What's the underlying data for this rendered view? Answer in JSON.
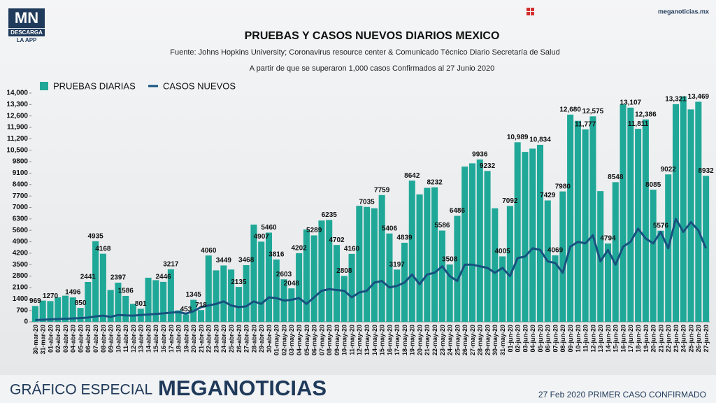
{
  "header": {
    "logo": "MN",
    "logo_sub": "DESCARGA",
    "logo_app": "LA APP",
    "site": "meganoticias.mx"
  },
  "chart_data": {
    "type": "bar_line",
    "title": "PRUEBAS Y CASOS NUEVOS DIARIOS MEXICO",
    "subtitle": "Fuente: Johns Hopkins University; Coronavirus resource center & Comunicado Técnico Diario Secretaría de Salud",
    "note": "A partir de que se superaron 1,000 casos Confirmados al 27 Junio 2020",
    "categories": [
      "30-mar-20",
      "31-mar-20",
      "01-abr-20",
      "02-abr-20",
      "03-abr-20",
      "04-abr-20",
      "05-abr-20",
      "06-abr-20",
      "07-abr-20",
      "08-abr-20",
      "09-abr-20",
      "10-abr-20",
      "11-abr-20",
      "12-abr-20",
      "13-abr-20",
      "14-abr-20",
      "15-abr-20",
      "16-abr-20",
      "17-abr-20",
      "18-abr-20",
      "19-abr-20",
      "20-abr-20",
      "21-abr-20",
      "22-abr-20",
      "23-abr-20",
      "24-abr-20",
      "25-abr-20",
      "26-abr-20",
      "27-abr-20",
      "28-abr-20",
      "29-abr-20",
      "30-abr-20",
      "01-may-20",
      "02-may-20",
      "03-may-20",
      "04-may-20",
      "05-may-20",
      "06-may-20",
      "07-may-20",
      "08-may-20",
      "09-may-20",
      "10-may-20",
      "11-may-20",
      "12-may-20",
      "13-may-20",
      "14-may-20",
      "15-may-20",
      "16-may-20",
      "17-may-20",
      "18-may-20",
      "19-may-20",
      "20-may-20",
      "21-may-20",
      "22-may-20",
      "23-may-20",
      "24-may-20",
      "25-may-20",
      "26-may-20",
      "27-may-20",
      "28-may-20",
      "29-may-20",
      "30-may-20",
      "31-may-20",
      "01-jun-20",
      "02-jun-20",
      "03-jun-20",
      "04-jun-20",
      "05-jun-20",
      "06-jun-20",
      "07-jun-20",
      "08-jun-20",
      "09-jun-20",
      "10-jun-20",
      "11-jun-20",
      "12-jun-20",
      "13-jun-20",
      "14-jun-20",
      "15-jun-20",
      "16-jun-20",
      "17-jun-20",
      "18-jun-20",
      "19-jun-20",
      "20-jun-20",
      "21-jun-20",
      "22-jun-20",
      "23-jun-20",
      "24-jun-20",
      "25-jun-20",
      "26-jun-20",
      "27-jun-20"
    ],
    "series": [
      {
        "name": "PRUEBAS DIARIAS",
        "type": "bar",
        "color": "#1fa898",
        "values": [
          969,
          1300,
          1270,
          1500,
          1600,
          1496,
          850,
          2441,
          4935,
          4168,
          1950,
          2397,
          1586,
          1100,
          801,
          2700,
          2550,
          2446,
          3217,
          700,
          453,
          1345,
          718,
          4060,
          3150,
          3449,
          3200,
          2135,
          3468,
          5950,
          4907,
          5460,
          3816,
          2603,
          2048,
          4202,
          5650,
          5289,
          6200,
          6235,
          4702,
          2808,
          4160,
          7100,
          7035,
          6950,
          7759,
          5406,
          3197,
          4839,
          8642,
          7800,
          8200,
          8232,
          5586,
          3508,
          6486,
          9500,
          9700,
          9936,
          9232,
          6950,
          4005,
          7092,
          10989,
          10400,
          10600,
          10834,
          7429,
          4069,
          7980,
          12680,
          12300,
          11777,
          12575,
          8000,
          4794,
          8548,
          13300,
          13107,
          11811,
          12386,
          8085,
          5576,
          9022,
          13321,
          13800,
          13000,
          13469,
          8932
        ],
        "value_labels": [
          "969",
          null,
          "1270",
          null,
          null,
          "1496",
          "850",
          "2441",
          "4935",
          "4168",
          null,
          "2397",
          "1586",
          null,
          "801",
          null,
          null,
          "2446",
          "3217",
          null,
          "453",
          "1345",
          "718",
          "4060",
          null,
          "3449",
          null,
          "2135",
          "3468",
          null,
          "4907",
          "5460",
          "3816",
          "2603",
          "2048",
          "4202",
          null,
          "5289",
          null,
          "6235",
          "4702",
          "2808",
          "4160",
          null,
          "7035",
          null,
          "7759",
          "5406",
          "3197",
          "4839",
          "8642",
          null,
          null,
          "8232",
          "5586",
          "3508",
          "6486",
          null,
          null,
          "9936",
          "9232",
          null,
          "4005",
          "7092",
          "10,989",
          null,
          null,
          "10,834",
          "7429",
          "4069",
          "7980",
          "12,680",
          null,
          "11,777",
          "12,575",
          null,
          "4794",
          "8548",
          null,
          "13,107",
          "11,811",
          "12,386",
          "8085",
          "5576",
          "9022",
          "13,321",
          null,
          null,
          "13,469",
          "8932"
        ]
      },
      {
        "name": "CASOS NUEVOS",
        "type": "line",
        "color": "#17527f",
        "values": [
          110,
          130,
          150,
          170,
          190,
          210,
          230,
          260,
          330,
          380,
          300,
          420,
          400,
          380,
          420,
          450,
          480,
          520,
          560,
          600,
          500,
          650,
          900,
          1000,
          1100,
          1250,
          1000,
          900,
          950,
          1250,
          1100,
          1500,
          1450,
          1300,
          1350,
          1450,
          1100,
          1500,
          1900,
          2000,
          1950,
          1900,
          1500,
          1800,
          1900,
          2400,
          2500,
          2100,
          2200,
          2400,
          2900,
          2300,
          2900,
          3000,
          3400,
          2800,
          2500,
          3500,
          3500,
          3400,
          3300,
          3000,
          3300,
          2800,
          3900,
          4000,
          4500,
          4400,
          3700,
          3600,
          3000,
          4600,
          4900,
          4800,
          5300,
          3700,
          4400,
          3500,
          4600,
          4900,
          5700,
          5100,
          4800,
          5500,
          4500,
          6300,
          5500,
          6100,
          5600,
          4500
        ]
      }
    ],
    "ylim": [
      0,
      14000
    ],
    "yticks": [
      0,
      700,
      1400,
      2100,
      2800,
      3500,
      4200,
      4900,
      5600,
      6300,
      7000,
      7700,
      8400,
      9100,
      9800,
      {
        "value": 10500,
        "label": "10,500"
      },
      {
        "value": 11200,
        "label": "11,200"
      },
      {
        "value": 11900,
        "label": "11,900"
      },
      {
        "value": 12600,
        "label": "12,600"
      },
      {
        "value": 13300,
        "label": "13,300"
      },
      {
        "value": 14000,
        "label": "14,000"
      }
    ]
  },
  "footer": {
    "left": "GRÁFICO ESPECIAL",
    "brand": "MEGANOTICIAS",
    "right": "27 Feb 2020 PRIMER CASO CONFIRMADO"
  }
}
